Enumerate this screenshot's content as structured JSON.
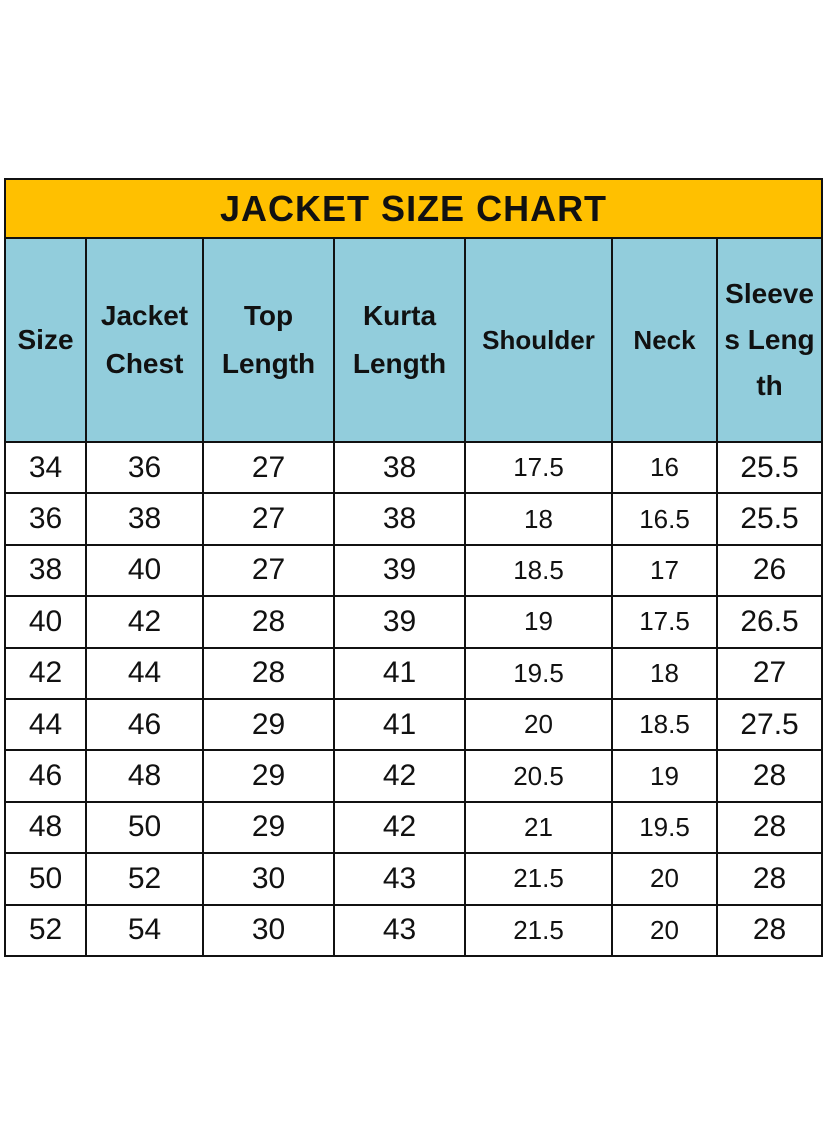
{
  "title": "JACKET SIZE CHART",
  "colors": {
    "title_bg": "#FFC000",
    "header_bg": "#92CDDC",
    "border": "#111111"
  },
  "columns": [
    "Size",
    "Jacket Chest",
    "Top Length",
    "Kurta Length",
    "Shoulder",
    "Neck",
    "Sleeves Length"
  ],
  "rows": [
    [
      "34",
      "36",
      "27",
      "38",
      "17.5",
      "16",
      "25.5"
    ],
    [
      "36",
      "38",
      "27",
      "38",
      "18",
      "16.5",
      "25.5"
    ],
    [
      "38",
      "40",
      "27",
      "39",
      "18.5",
      "17",
      "26"
    ],
    [
      "40",
      "42",
      "28",
      "39",
      "19",
      "17.5",
      "26.5"
    ],
    [
      "42",
      "44",
      "28",
      "41",
      "19.5",
      "18",
      "27"
    ],
    [
      "44",
      "46",
      "29",
      "41",
      "20",
      "18.5",
      "27.5"
    ],
    [
      "46",
      "48",
      "29",
      "42",
      "20.5",
      "19",
      "28"
    ],
    [
      "48",
      "50",
      "29",
      "42",
      "21",
      "19.5",
      "28"
    ],
    [
      "50",
      "52",
      "30",
      "43",
      "21.5",
      "20",
      "28"
    ],
    [
      "52",
      "54",
      "30",
      "43",
      "21.5",
      "20",
      "28"
    ]
  ]
}
